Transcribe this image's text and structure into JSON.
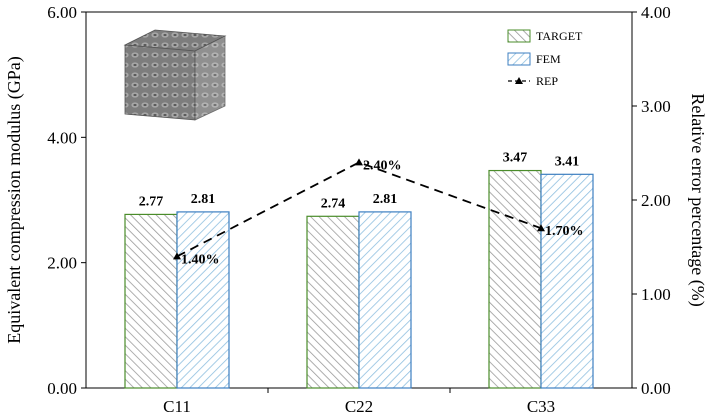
{
  "chart_data": {
    "type": "bar",
    "categories": [
      "C11",
      "C22",
      "C33"
    ],
    "series": [
      {
        "name": "TARGET",
        "values": [
          2.77,
          2.74,
          3.47
        ],
        "labels": [
          "2.77",
          "2.74",
          "3.47"
        ],
        "color": "#4a8c2a",
        "hatch": "#9a9a9a"
      },
      {
        "name": "FEM",
        "values": [
          2.81,
          2.81,
          3.41
        ],
        "labels": [
          "2.81",
          "2.81",
          "3.41"
        ],
        "color": "#3d7fc0",
        "hatch": "#8fbfe0"
      }
    ],
    "line_series": {
      "name": "REP",
      "values": [
        1.4,
        2.4,
        1.7
      ],
      "labels": [
        "1.40%",
        "2.40%",
        "1.70%"
      ],
      "axis": "right",
      "style": "dashed",
      "marker": "triangle",
      "color": "#000000"
    },
    "ylabel": "Equivalent compression modulus (GPa)",
    "y2label": "Relative error percentage (%)",
    "ylim": [
      0,
      6
    ],
    "y2lim": [
      0,
      4
    ],
    "yticks": [
      "0.00",
      "2.00",
      "4.00",
      "6.00"
    ],
    "y2ticks": [
      "0.00",
      "1.00",
      "2.00",
      "3.00",
      "4.00"
    ],
    "grid": false,
    "legend_position": "top-right",
    "inset_image": "lattice-cube-icon"
  }
}
